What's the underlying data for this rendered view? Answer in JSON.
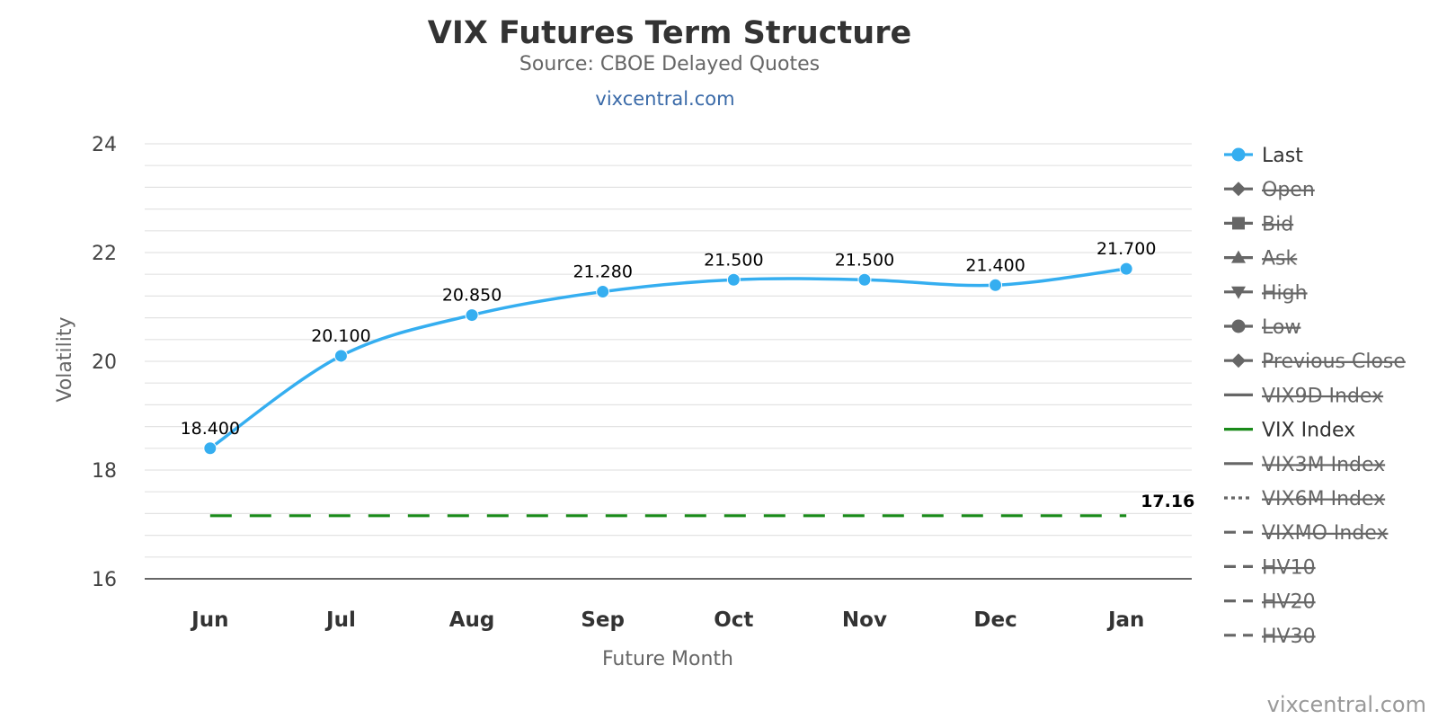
{
  "chart_data": {
    "type": "line",
    "title": "VIX Futures Term Structure",
    "subtitle": "Source: CBOE Delayed Quotes",
    "link_text": "vixcentral.com",
    "credits": "vixcentral.com",
    "xlabel": "Future Month",
    "ylabel": "Volatility",
    "categories": [
      "Jun",
      "Jul",
      "Aug",
      "Sep",
      "Oct",
      "Nov",
      "Dec",
      "Jan"
    ],
    "ylim": [
      16,
      24
    ],
    "yticks": [
      16,
      18,
      20,
      22,
      24
    ],
    "grid": true,
    "legend_position": "right",
    "series": [
      {
        "name": "Last",
        "values": [
          18.4,
          20.1,
          20.85,
          21.28,
          21.5,
          21.5,
          21.4,
          21.7
        ],
        "labels": [
          "18.400",
          "20.100",
          "20.850",
          "21.280",
          "21.500",
          "21.500",
          "21.400",
          "21.700"
        ],
        "color": "#35aef0",
        "style": "smooth-line-with-markers"
      },
      {
        "name": "VIX Index",
        "values": [
          17.16,
          17.16,
          17.16,
          17.16,
          17.16,
          17.16,
          17.16,
          17.16
        ],
        "end_label": "17.16",
        "color": "#1a8a1a",
        "style": "dashed"
      }
    ],
    "legend": [
      {
        "name": "Last",
        "symbol": "circle",
        "visible": true,
        "color": "#35aef0"
      },
      {
        "name": "Open",
        "symbol": "diamond",
        "visible": false,
        "color": "#666666"
      },
      {
        "name": "Bid",
        "symbol": "square",
        "visible": false,
        "color": "#666666"
      },
      {
        "name": "Ask",
        "symbol": "triangle-up",
        "visible": false,
        "color": "#666666"
      },
      {
        "name": "High",
        "symbol": "triangle-down",
        "visible": false,
        "color": "#666666"
      },
      {
        "name": "Low",
        "symbol": "circle",
        "visible": false,
        "color": "#666666"
      },
      {
        "name": "Previous Close",
        "symbol": "diamond",
        "visible": false,
        "color": "#666666"
      },
      {
        "name": "VIX9D Index",
        "symbol": "line",
        "visible": false,
        "color": "#666666"
      },
      {
        "name": "VIX Index",
        "symbol": "line",
        "visible": true,
        "color": "#1a8a1a"
      },
      {
        "name": "VIX3M Index",
        "symbol": "line",
        "visible": false,
        "color": "#666666"
      },
      {
        "name": "VIX6M Index",
        "symbol": "dotted",
        "visible": false,
        "color": "#666666"
      },
      {
        "name": "VIXMO Index",
        "symbol": "dashed",
        "visible": false,
        "color": "#666666"
      },
      {
        "name": "HV10",
        "symbol": "dashed",
        "visible": false,
        "color": "#666666"
      },
      {
        "name": "HV20",
        "symbol": "dashed",
        "visible": false,
        "color": "#666666"
      },
      {
        "name": "HV30",
        "symbol": "dashed",
        "visible": false,
        "color": "#666666"
      }
    ]
  }
}
